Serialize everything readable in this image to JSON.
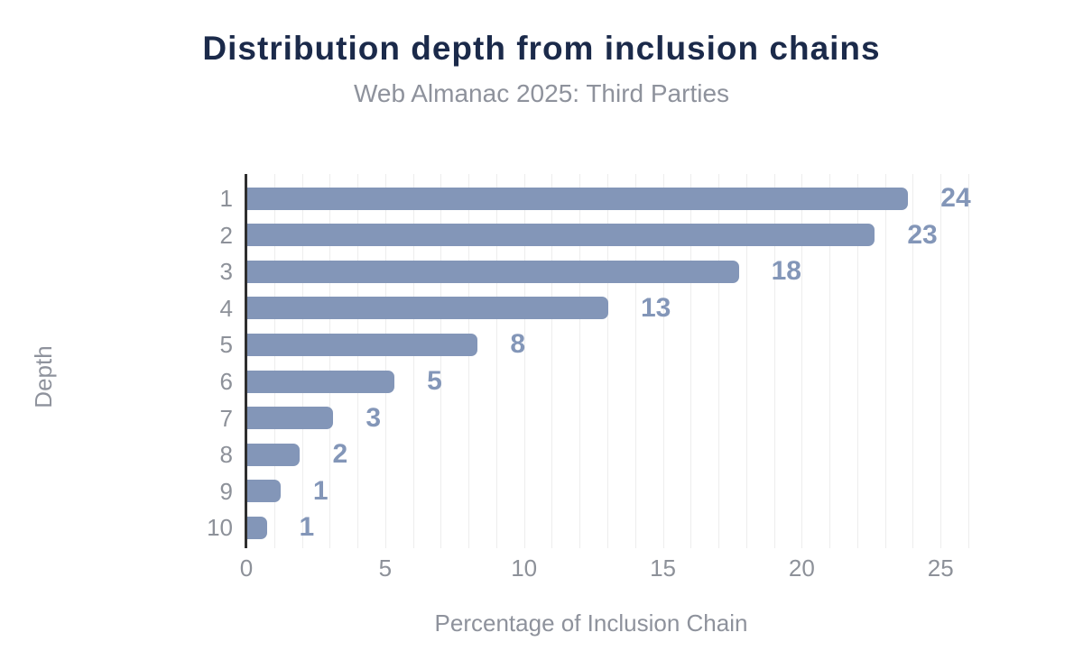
{
  "title": "Distribution depth from inclusion chains",
  "subtitle": "Web Almanac 2025: Third Parties",
  "colors": {
    "bar": "#8396b8",
    "data_label": "#8396b8",
    "title": "#1b2a4a",
    "subtitle": "#8e929c",
    "axis_text": "#8d9199",
    "axis_line": "#2f2f2f",
    "gridline": "#ededed",
    "background": "#ffffff"
  },
  "chart_data": {
    "type": "bar",
    "orientation": "horizontal",
    "title": "Distribution depth from inclusion chains",
    "subtitle": "Web Almanac 2025: Third Parties",
    "xlabel": "Percentage of Inclusion Chain",
    "ylabel": "Depth",
    "categories": [
      "1",
      "2",
      "3",
      "4",
      "5",
      "6",
      "7",
      "8",
      "9",
      "10"
    ],
    "values": [
      23.8,
      22.6,
      17.7,
      13.0,
      8.3,
      5.3,
      3.1,
      1.9,
      1.2,
      0.7
    ],
    "data_labels": [
      "24",
      "23",
      "18",
      "13",
      "8",
      "5",
      "3",
      "2",
      "1",
      "1"
    ],
    "xlim": [
      0,
      26
    ],
    "xticks": [
      0,
      5,
      10,
      15,
      20,
      25
    ],
    "grid": "vertical minor gridlines every 1 unit",
    "legend": "none",
    "bar_corner_radius": "rounded right ends"
  }
}
